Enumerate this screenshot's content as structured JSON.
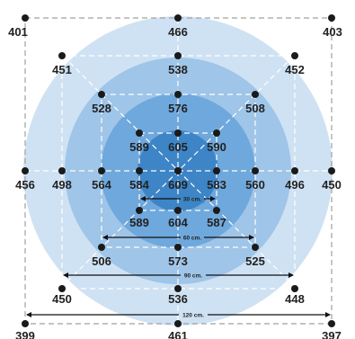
{
  "colors": {
    "ring_120": "#cfe2f3",
    "ring_90": "#9fc5e8",
    "ring_60": "#6fa8dc",
    "ring_30": "#3d85c6",
    "point": "#1a1a1a",
    "guide": "#ffffff",
    "outline": "#a0a0a0",
    "arrow": "#111111"
  },
  "points": [
    {
      "id": "p401",
      "value": "401"
    },
    {
      "id": "p466",
      "value": "466"
    },
    {
      "id": "p403",
      "value": "403"
    },
    {
      "id": "p451",
      "value": "451"
    },
    {
      "id": "p538",
      "value": "538"
    },
    {
      "id": "p452",
      "value": "452"
    },
    {
      "id": "p528",
      "value": "528"
    },
    {
      "id": "p576",
      "value": "576"
    },
    {
      "id": "p508",
      "value": "508"
    },
    {
      "id": "p589a",
      "value": "589"
    },
    {
      "id": "p605",
      "value": "605"
    },
    {
      "id": "p590",
      "value": "590"
    },
    {
      "id": "p456",
      "value": "456"
    },
    {
      "id": "p498",
      "value": "498"
    },
    {
      "id": "p564",
      "value": "564"
    },
    {
      "id": "p584",
      "value": "584"
    },
    {
      "id": "p609",
      "value": "609"
    },
    {
      "id": "p583",
      "value": "583"
    },
    {
      "id": "p560",
      "value": "560"
    },
    {
      "id": "p496",
      "value": "496"
    },
    {
      "id": "p450a",
      "value": "450"
    },
    {
      "id": "p589b",
      "value": "589"
    },
    {
      "id": "p604",
      "value": "604"
    },
    {
      "id": "p587",
      "value": "587"
    },
    {
      "id": "p506",
      "value": "506"
    },
    {
      "id": "p573",
      "value": "573"
    },
    {
      "id": "p525",
      "value": "525"
    },
    {
      "id": "p450b",
      "value": "450"
    },
    {
      "id": "p536",
      "value": "536"
    },
    {
      "id": "p448",
      "value": "448"
    },
    {
      "id": "p399",
      "value": "399"
    },
    {
      "id": "p461",
      "value": "461"
    },
    {
      "id": "p397",
      "value": "397"
    }
  ],
  "dimensions": [
    {
      "id": "d30",
      "label": "30 cm."
    },
    {
      "id": "d60",
      "label": "60 cm."
    },
    {
      "id": "d90",
      "label": "90 cm."
    },
    {
      "id": "d120",
      "label": "120 cm."
    }
  ]
}
